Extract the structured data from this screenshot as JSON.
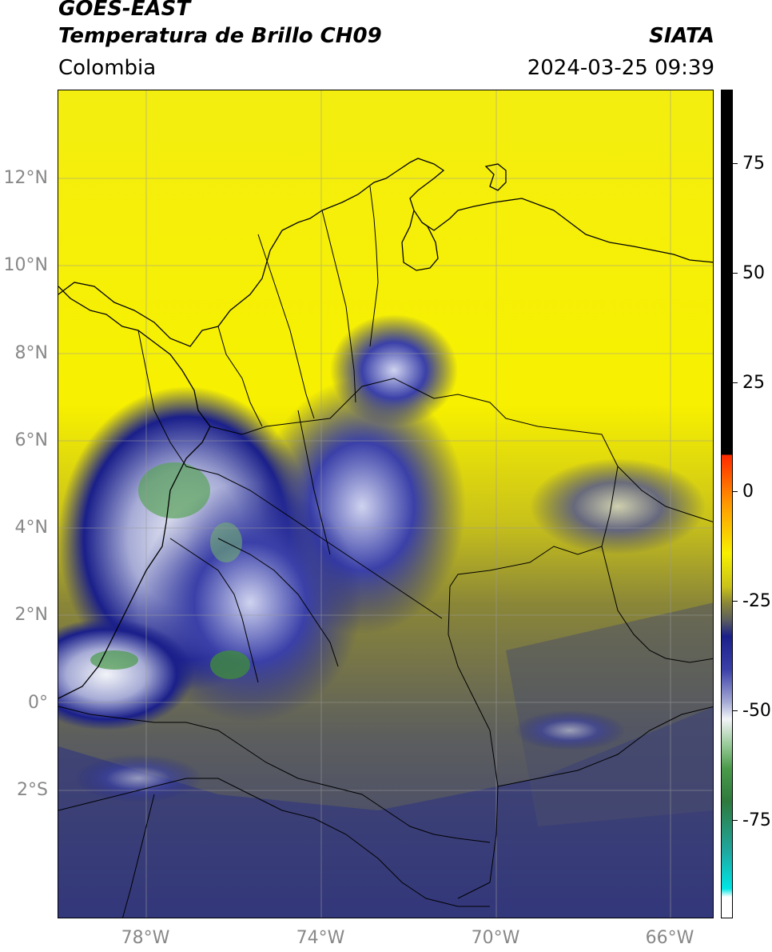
{
  "header": {
    "satellite": "GOES-EAST",
    "product": "Temperatura de Brillo CH09",
    "agency": "SIATA",
    "region": "Colombia",
    "datetime": "2024-03-25 09:39"
  },
  "map": {
    "lat_labels": [
      "12°N",
      "10°N",
      "8°N",
      "6°N",
      "4°N",
      "2°N",
      "0°",
      "2°S"
    ],
    "lon_labels": [
      "78°W",
      "74°W",
      "70°W",
      "66°W"
    ],
    "colors": {
      "warm_yellow": "#f7f000",
      "olive": "#7c7a2c",
      "gray_blue": "#4a4d6a",
      "deep_blue": "#1a1f8a",
      "cloud_white": "#f2f4f8",
      "cold_green": "#4a9a4a"
    }
  },
  "colorbar": {
    "labels": [
      "75",
      "50",
      "25",
      "0",
      "-25",
      "-50",
      "-75"
    ]
  }
}
